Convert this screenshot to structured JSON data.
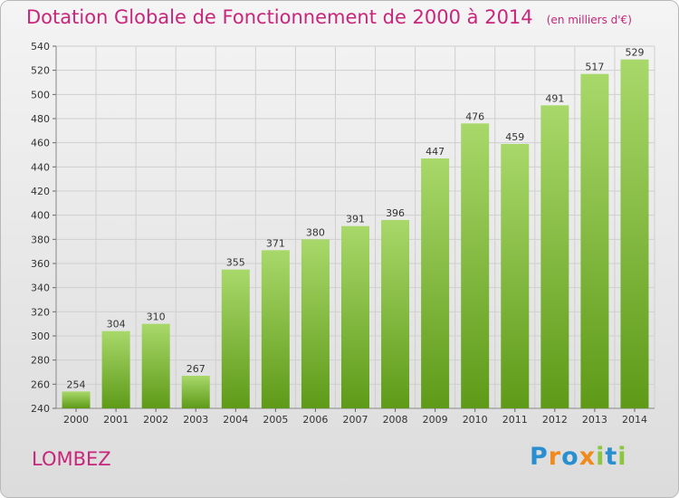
{
  "title": "Dotation Globale de Fonctionnement de 2000 à 2014",
  "subtitle": "(en milliers d'€)",
  "commune": "LOMBEZ",
  "logo": {
    "letters": [
      "P",
      "r",
      "o",
      "x",
      "i",
      "t",
      "i"
    ],
    "colors": [
      "#2a8fd0",
      "#f08a1c",
      "#2a8fd0",
      "#f08a1c",
      "#8cc63e",
      "#2a8fd0",
      "#8cc63e"
    ]
  },
  "chart_data": {
    "type": "bar",
    "categories": [
      "2000",
      "2001",
      "2002",
      "2003",
      "2004",
      "2005",
      "2006",
      "2007",
      "2008",
      "2009",
      "2010",
      "2011",
      "2012",
      "2013",
      "2014"
    ],
    "values": [
      254,
      304,
      310,
      267,
      355,
      371,
      380,
      391,
      396,
      447,
      476,
      459,
      491,
      517,
      529
    ],
    "ylim": [
      240,
      540
    ],
    "yticks": [
      240,
      260,
      280,
      300,
      320,
      340,
      360,
      380,
      400,
      420,
      440,
      460,
      480,
      500,
      520,
      540
    ],
    "grid": true,
    "bar_color_light": "#a8d86a",
    "bar_color_dark": "#5e9a18"
  }
}
